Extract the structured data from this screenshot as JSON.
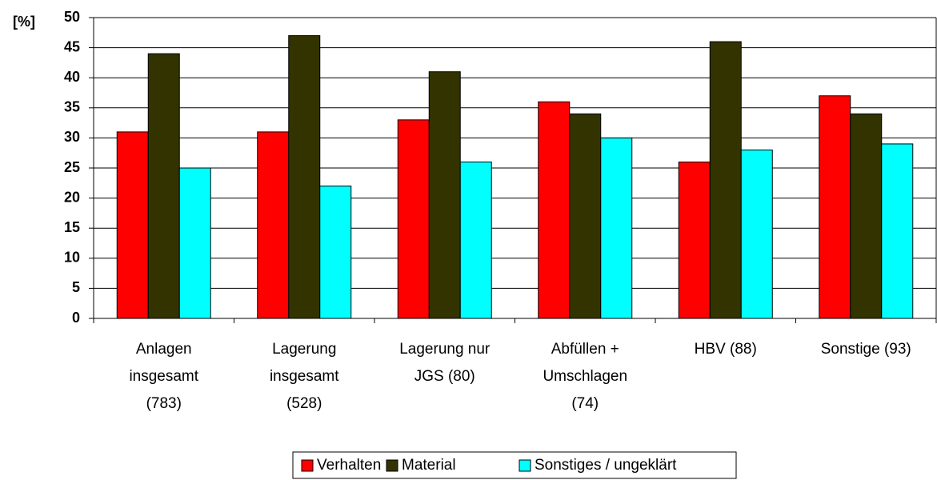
{
  "chart_data": {
    "type": "bar",
    "y_label": "[%]",
    "categories": [
      [
        "Anlagen",
        "insgesamt",
        "(783)"
      ],
      [
        "Lagerung",
        "insgesamt",
        "(528)"
      ],
      [
        "Lagerung nur",
        "JGS (80)"
      ],
      [
        "Abfüllen +",
        "Umschlagen",
        "(74)"
      ],
      [
        "HBV (88)"
      ],
      [
        "Sonstige (93)"
      ]
    ],
    "series": [
      {
        "name": "Verhalten",
        "color": "#ff0000",
        "values": [
          31,
          31,
          33,
          36,
          26,
          37
        ]
      },
      {
        "name": "Material",
        "color": "#333300",
        "values": [
          44,
          47,
          41,
          34,
          46,
          34
        ]
      },
      {
        "name": "Sonstiges / ungeklärt",
        "color": "#00ffff",
        "values": [
          25,
          22,
          26,
          30,
          28,
          29
        ]
      }
    ],
    "ylim": [
      0,
      50
    ],
    "yticks": [
      0,
      5,
      10,
      15,
      20,
      25,
      30,
      35,
      40,
      45,
      50
    ],
    "grid": true,
    "legend": "bottom"
  }
}
